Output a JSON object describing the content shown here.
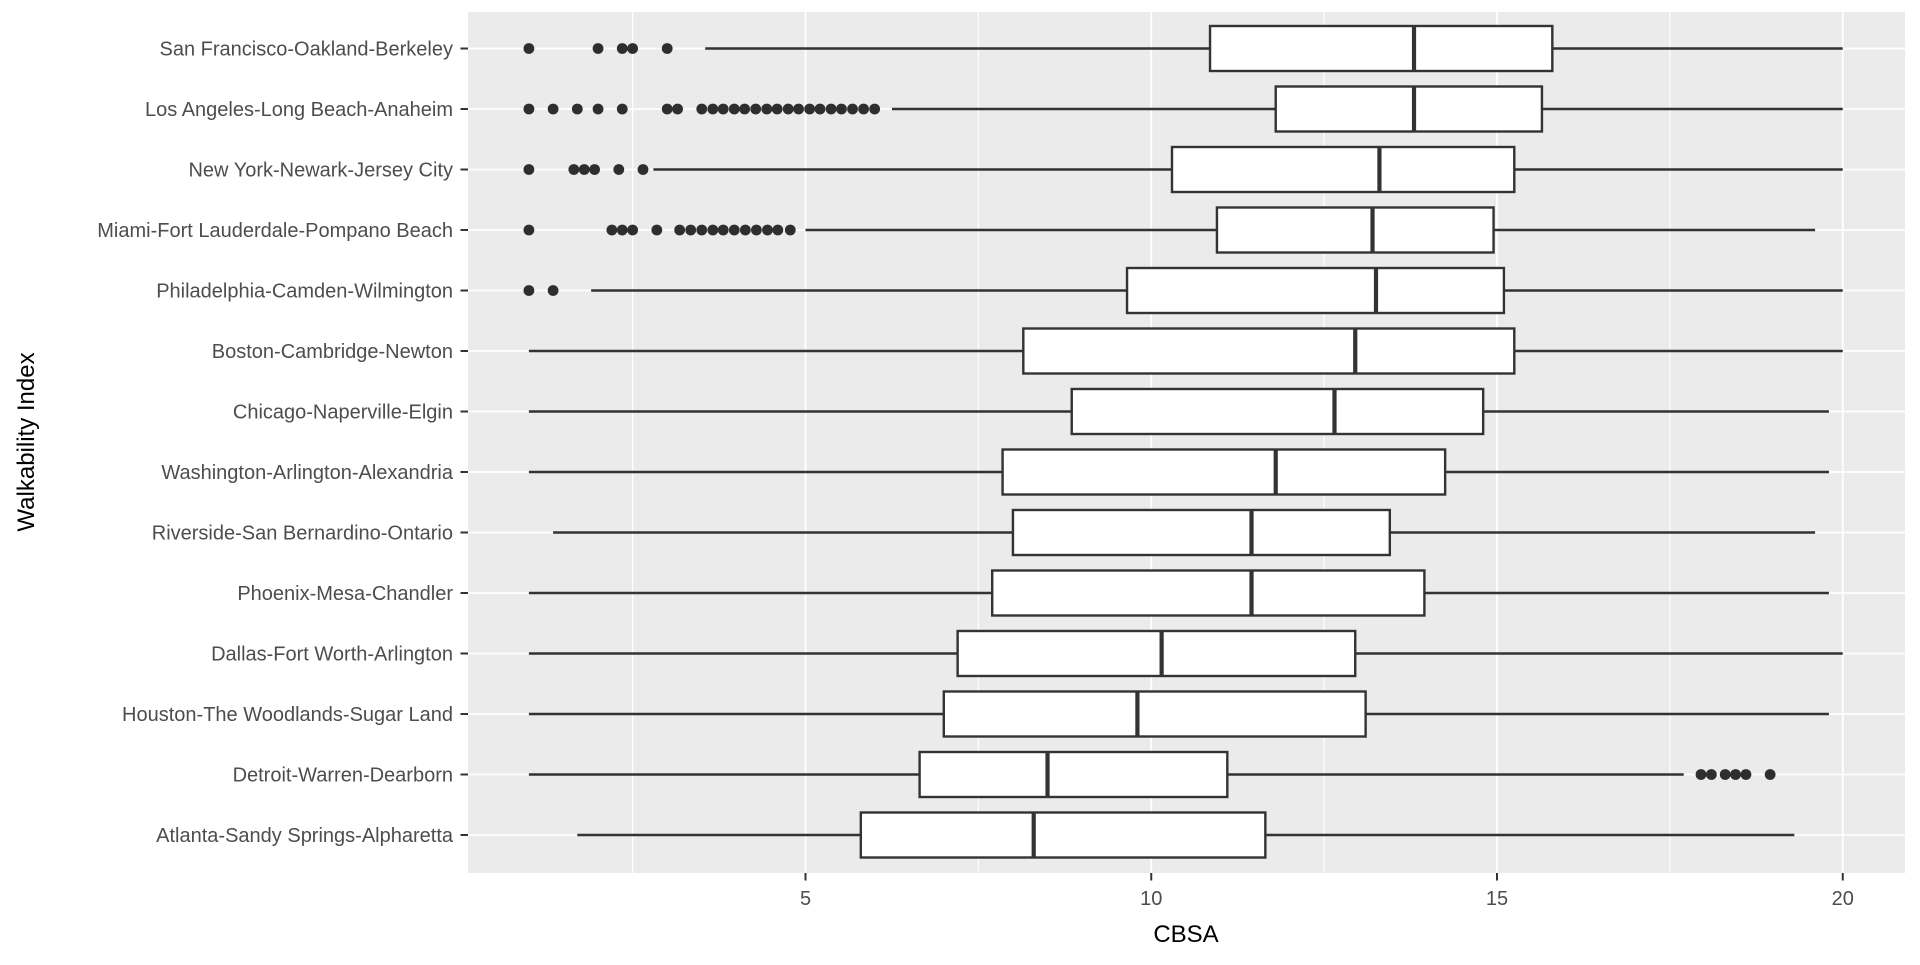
{
  "chart_data": {
    "type": "boxplot",
    "orientation": "horizontal",
    "title": "",
    "xlabel": "CBSA",
    "ylabel": "Walkability Index",
    "x_ticks": [
      5,
      10,
      15,
      20
    ],
    "x_minor_ticks": [
      2.5,
      7.5,
      12.5,
      17.5
    ],
    "xlim": [
      0.1,
      20.9
    ],
    "grid": true,
    "legend": false,
    "panel_bg": "#EBEBEB",
    "grid_color": "#FFFFFF",
    "box_fill": "#FFFFFF",
    "box_stroke": "#333333",
    "outlier_color": "#2E2E2E",
    "tick_text_color": "#4D4D4D",
    "axis_title_color": "#000000",
    "series": [
      {
        "label": "San Francisco-Oakland-Berkeley",
        "whisker_low": 3.55,
        "q1": 10.85,
        "median": 13.8,
        "q3": 15.8,
        "whisker_high": 20.0,
        "outliers": [
          1.0,
          2.0,
          2.35,
          2.5,
          3.0
        ]
      },
      {
        "label": "Los Angeles-Long Beach-Anaheim",
        "whisker_low": 6.25,
        "q1": 11.8,
        "median": 13.8,
        "q3": 15.65,
        "whisker_high": 20.0,
        "outliers": [
          1.0,
          1.35,
          1.7,
          2.0,
          2.35,
          3.0,
          3.15,
          3.5,
          3.66,
          3.81,
          3.97,
          4.12,
          4.28,
          4.44,
          4.59,
          4.75,
          4.9,
          5.06,
          5.21,
          5.37,
          5.52,
          5.68,
          5.84,
          6.0
        ]
      },
      {
        "label": "New York-Newark-Jersey City",
        "whisker_low": 2.8,
        "q1": 10.3,
        "median": 13.3,
        "q3": 15.25,
        "whisker_high": 20.0,
        "outliers": [
          1.0,
          1.65,
          1.8,
          1.95,
          2.3,
          2.65
        ]
      },
      {
        "label": "Miami-Fort Lauderdale-Pompano Beach",
        "whisker_low": 5.0,
        "q1": 10.95,
        "median": 13.2,
        "q3": 14.95,
        "whisker_high": 19.6,
        "outliers": [
          1.0,
          2.2,
          2.35,
          2.5,
          2.85,
          3.18,
          3.34,
          3.5,
          3.66,
          3.81,
          3.97,
          4.13,
          4.29,
          4.45,
          4.6,
          4.78
        ]
      },
      {
        "label": "Philadelphia-Camden-Wilmington",
        "whisker_low": 1.9,
        "q1": 9.65,
        "median": 13.25,
        "q3": 15.1,
        "whisker_high": 20.0,
        "outliers": [
          1.0,
          1.35
        ]
      },
      {
        "label": "Boston-Cambridge-Newton",
        "whisker_low": 1.0,
        "q1": 8.15,
        "median": 12.95,
        "q3": 15.25,
        "whisker_high": 20.0,
        "outliers": []
      },
      {
        "label": "Chicago-Naperville-Elgin",
        "whisker_low": 1.0,
        "q1": 8.85,
        "median": 12.65,
        "q3": 14.8,
        "whisker_high": 19.8,
        "outliers": []
      },
      {
        "label": "Washington-Arlington-Alexandria",
        "whisker_low": 1.0,
        "q1": 7.85,
        "median": 11.8,
        "q3": 14.25,
        "whisker_high": 19.8,
        "outliers": []
      },
      {
        "label": "Riverside-San Bernardino-Ontario",
        "whisker_low": 1.35,
        "q1": 8.0,
        "median": 11.45,
        "q3": 13.45,
        "whisker_high": 19.6,
        "outliers": []
      },
      {
        "label": "Phoenix-Mesa-Chandler",
        "whisker_low": 1.0,
        "q1": 7.7,
        "median": 11.45,
        "q3": 13.95,
        "whisker_high": 19.8,
        "outliers": []
      },
      {
        "label": "Dallas-Fort Worth-Arlington",
        "whisker_low": 1.0,
        "q1": 7.2,
        "median": 10.15,
        "q3": 12.95,
        "whisker_high": 20.0,
        "outliers": []
      },
      {
        "label": "Houston-The Woodlands-Sugar Land",
        "whisker_low": 1.0,
        "q1": 7.0,
        "median": 9.8,
        "q3": 13.1,
        "whisker_high": 19.8,
        "outliers": []
      },
      {
        "label": "Detroit-Warren-Dearborn",
        "whisker_low": 1.0,
        "q1": 6.65,
        "median": 8.5,
        "q3": 11.1,
        "whisker_high": 17.7,
        "outliers": [
          17.95,
          18.1,
          18.3,
          18.45,
          18.6,
          18.95
        ]
      },
      {
        "label": "Atlanta-Sandy Springs-Alpharetta",
        "whisker_low": 1.7,
        "q1": 5.8,
        "median": 8.3,
        "q3": 11.65,
        "whisker_high": 19.3,
        "outliers": []
      }
    ]
  }
}
